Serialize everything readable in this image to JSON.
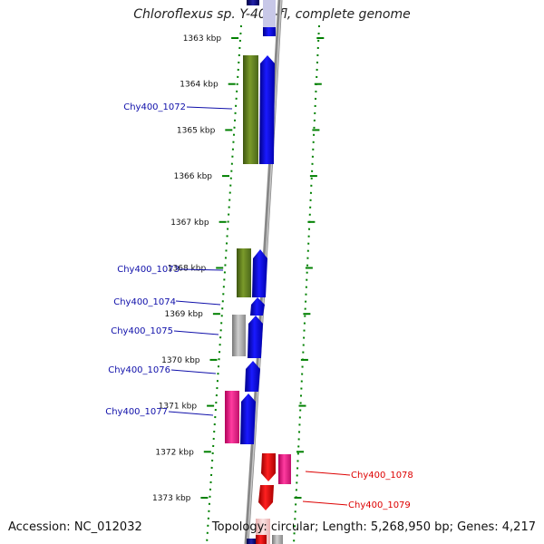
{
  "title": "Chloroflexus sp. Y-400-fl, complete genome",
  "footer": {
    "accession": "Accession: NC_012032",
    "summary": "Topology: circular; Length: 5,268,950 bp; Genes: 4,217"
  },
  "kbp_labels": [
    "1363 kbp",
    "1364 kbp",
    "1365 kbp",
    "1366 kbp",
    "1367 kbp",
    "1368 kbp",
    "1369 kbp",
    "1370 kbp",
    "1371 kbp",
    "1372 kbp",
    "1373 kbp"
  ],
  "gene_labels": [
    "Chy400_1072",
    "Chy400_1073",
    "Chy400_1074",
    "Chy400_1075",
    "Chy400_1076",
    "Chy400_1077",
    "Chy400_1078",
    "Chy400_1079"
  ],
  "colors": {
    "blue_label": "#1010aa",
    "red_label": "#dd0000",
    "blue_gene": "#0000ee",
    "olive_gene": "#6b8e23",
    "gray_gene": "#aaaaaa",
    "magenta_gene": "#ff1493",
    "red_gene": "#ee0000",
    "tick_green": "#008000",
    "backbone": "#888888"
  }
}
